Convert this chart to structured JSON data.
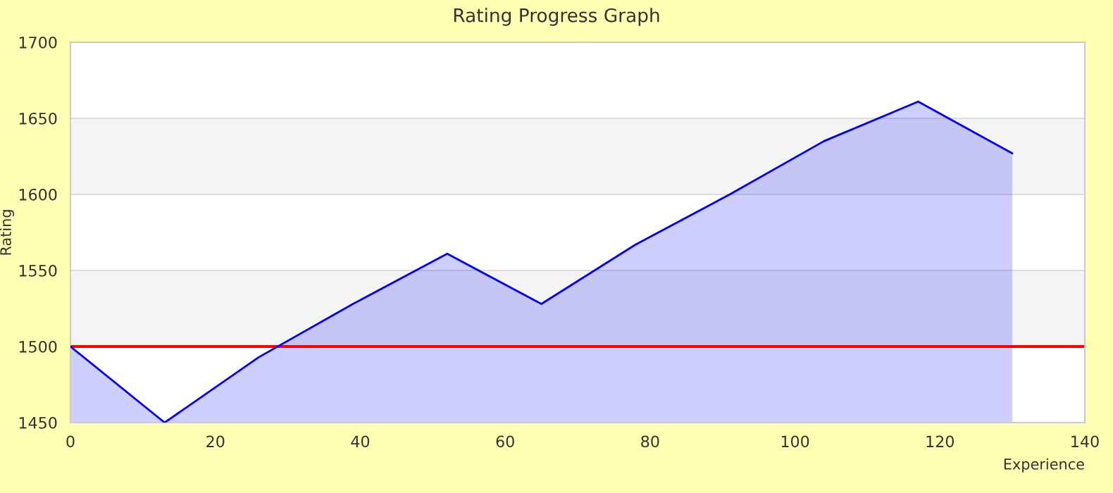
{
  "chart_data": {
    "type": "area",
    "title": "Rating Progress Graph",
    "xlabel": "Experience",
    "ylabel": "Rating",
    "x": [
      0,
      13,
      26,
      39,
      52,
      65,
      78,
      91,
      104,
      117,
      130
    ],
    "series": [
      {
        "color": "#0000ff",
        "values": [
          1500,
          1450,
          1493,
          1528,
          1561,
          1528,
          1567,
          1600,
          1635,
          1661,
          1627
        ]
      }
    ],
    "xlim": [
      0,
      140
    ],
    "ylim": [
      1450,
      1700
    ],
    "xticks": [
      0,
      20,
      40,
      60,
      80,
      100,
      120,
      140
    ],
    "yticks": [
      1450,
      1500,
      1550,
      1600,
      1650,
      1700
    ],
    "grid": "y",
    "ref_lines": [
      {
        "axis": "y",
        "value": 1500,
        "color": "#ff0000"
      }
    ]
  }
}
